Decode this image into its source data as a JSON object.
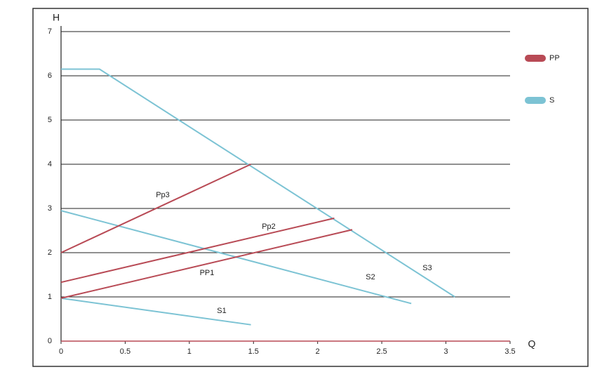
{
  "chart_data": {
    "type": "line",
    "x_label": "Q",
    "y_label": "H",
    "xlim": [
      0,
      3.5
    ],
    "ylim": [
      0,
      7
    ],
    "xticks": [
      0,
      0.5,
      1,
      1.5,
      2,
      2.5,
      3,
      3.5
    ],
    "yticks": [
      0,
      1,
      2,
      3,
      4,
      5,
      6,
      7
    ],
    "grid": true,
    "legend": [
      {
        "name": "PP",
        "color": "#b84a55"
      },
      {
        "name": "S",
        "color": "#7cc3d4"
      }
    ],
    "series": [
      {
        "name": "S1",
        "color": "#7cc3d4",
        "x": [
          0,
          1.48
        ],
        "values": [
          0.97,
          0.37
        ]
      },
      {
        "name": "S2",
        "color": "#7cc3d4",
        "x": [
          0,
          2.73
        ],
        "values": [
          2.95,
          0.85
        ]
      },
      {
        "name": "S3",
        "color": "#7cc3d4",
        "x": [
          0,
          0.3,
          3.07
        ],
        "values": [
          6.15,
          6.15,
          1.0
        ]
      },
      {
        "name": "PP1",
        "color": "#b84a55",
        "x": [
          0,
          2.27
        ],
        "values": [
          0.97,
          2.52
        ]
      },
      {
        "name": "Pp2",
        "color": "#b84a55",
        "x": [
          0,
          2.13
        ],
        "values": [
          1.33,
          2.78
        ]
      },
      {
        "name": "Pp3",
        "color": "#b84a55",
        "x": [
          0,
          1.48
        ],
        "values": [
          2.0,
          4.0
        ]
      }
    ]
  }
}
